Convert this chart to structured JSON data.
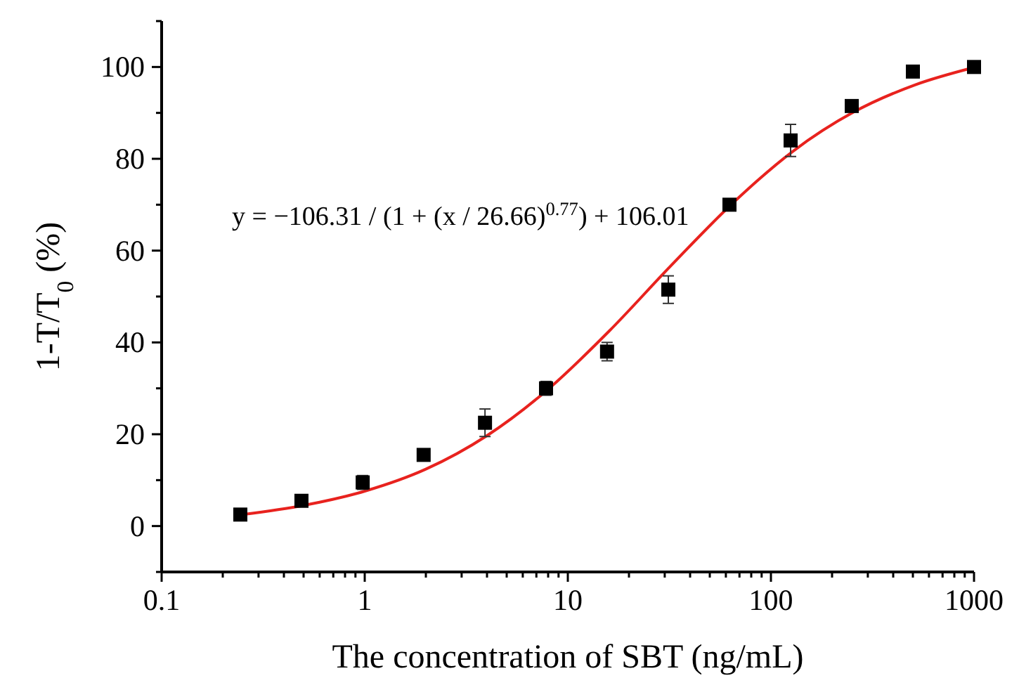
{
  "chart_data": {
    "type": "scatter",
    "xlabel": "The concentration of SBT (ng/mL)",
    "ylabel": "1-T/T$_{0}$ (%)",
    "log": "x",
    "grid": false,
    "xlim": [
      0.1,
      1000
    ],
    "ylim": [
      -10,
      110
    ],
    "xticks": [
      0.1,
      {
        "value": 0.2,
        "label": null
      },
      {
        "value": 0.3,
        "label": null
      },
      {
        "value": 0.4,
        "label": null
      },
      {
        "value": 0.5,
        "label": null
      },
      {
        "value": 0.6,
        "label": null
      },
      {
        "value": 0.7,
        "label": null
      },
      {
        "value": 0.8,
        "label": null
      },
      {
        "value": 0.9,
        "label": null
      },
      1,
      {
        "value": 2,
        "label": null
      },
      {
        "value": 3,
        "label": null
      },
      {
        "value": 4,
        "label": null
      },
      {
        "value": 5,
        "label": null
      },
      {
        "value": 6,
        "label": null
      },
      {
        "value": 7,
        "label": null
      },
      {
        "value": 8,
        "label": null
      },
      {
        "value": 9,
        "label": null
      },
      10,
      {
        "value": 20,
        "label": null
      },
      {
        "value": 30,
        "label": null
      },
      {
        "value": 40,
        "label": null
      },
      {
        "value": 50,
        "label": null
      },
      {
        "value": 60,
        "label": null
      },
      {
        "value": 70,
        "label": null
      },
      {
        "value": 80,
        "label": null
      },
      {
        "value": 90,
        "label": null
      },
      100,
      {
        "value": 200,
        "label": null
      },
      {
        "value": 300,
        "label": null
      },
      {
        "value": 400,
        "label": null
      },
      {
        "value": 500,
        "label": null
      },
      {
        "value": 600,
        "label": null
      },
      {
        "value": 700,
        "label": null
      },
      {
        "value": 800,
        "label": null
      },
      {
        "value": 900,
        "label": null
      },
      1000
    ],
    "yticks": [
      {
        "value": -10,
        "label": null
      },
      0,
      {
        "value": 10,
        "label": null
      },
      20,
      {
        "value": 30,
        "label": null
      },
      40,
      {
        "value": 50,
        "label": null
      },
      60,
      {
        "value": 70,
        "label": null
      },
      80,
      {
        "value": 90,
        "label": null
      },
      100,
      {
        "value": 110,
        "label": null
      }
    ],
    "annotations": [
      "y = −106.31 / (1 + (x / 26.66)$^{0.77}$) + 106.01"
    ],
    "series": [
      {
        "type": "line",
        "color": "#e8221e",
        "marker": "none",
        "line_style": "solid",
        "x": [
          0.25,
          0.5,
          1,
          2,
          4,
          8,
          16,
          32,
          64,
          128,
          256,
          512,
          1000
        ],
        "values": [
          2.5,
          4.5,
          7.6,
          12.4,
          19.7,
          29.8,
          42.5,
          56.6,
          70.1,
          81.6,
          90.2,
          96.1,
          99.9
        ]
      },
      {
        "color": "#000000",
        "marker": "square",
        "x": [
          0.244,
          0.488,
          0.977,
          1.95,
          3.91,
          7.81,
          15.6,
          31.25,
          62.5,
          125,
          250,
          500,
          1000
        ],
        "values": [
          2.5,
          5.5,
          9.5,
          15.5,
          22.5,
          30,
          38,
          51.5,
          70,
          84,
          91.5,
          99,
          100
        ],
        "errors": [
          0.5,
          0.5,
          1.5,
          0.5,
          3,
          1.5,
          2,
          3,
          0.5,
          3.5,
          1,
          0.5,
          0.3
        ]
      }
    ]
  }
}
